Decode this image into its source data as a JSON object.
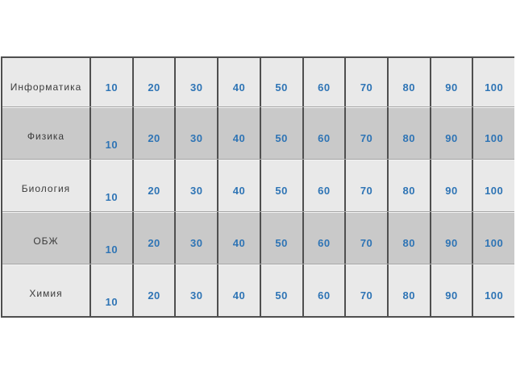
{
  "board": {
    "rows": [
      {
        "subject": "Информатика",
        "values": [
          "10",
          "20",
          "30",
          "40",
          "50",
          "60",
          "70",
          "80",
          "90",
          "100"
        ]
      },
      {
        "subject": "Физика",
        "values": [
          "10",
          "20",
          "30",
          "40",
          "50",
          "60",
          "70",
          "80",
          "90",
          "100"
        ]
      },
      {
        "subject": "Биология",
        "values": [
          "10",
          "20",
          "30",
          "40",
          "50",
          "60",
          "70",
          "80",
          "90",
          "100"
        ]
      },
      {
        "subject": "ОБЖ",
        "values": [
          "10",
          "20",
          "30",
          "40",
          "50",
          "60",
          "70",
          "80",
          "90",
          "100"
        ]
      },
      {
        "subject": "Химия",
        "values": [
          "10",
          "20",
          "30",
          "40",
          "50",
          "60",
          "70",
          "80",
          "90",
          "100"
        ]
      }
    ]
  },
  "colors": {
    "page_background": "#ffffff",
    "row_light": "#e9e9e9",
    "row_dark": "#c9c9c9",
    "grid_line_dark": "#4f4f4f",
    "grid_line_light": "#a6a6a6",
    "points_text": "#2e74b5",
    "subject_text": "#3b3b3b"
  }
}
